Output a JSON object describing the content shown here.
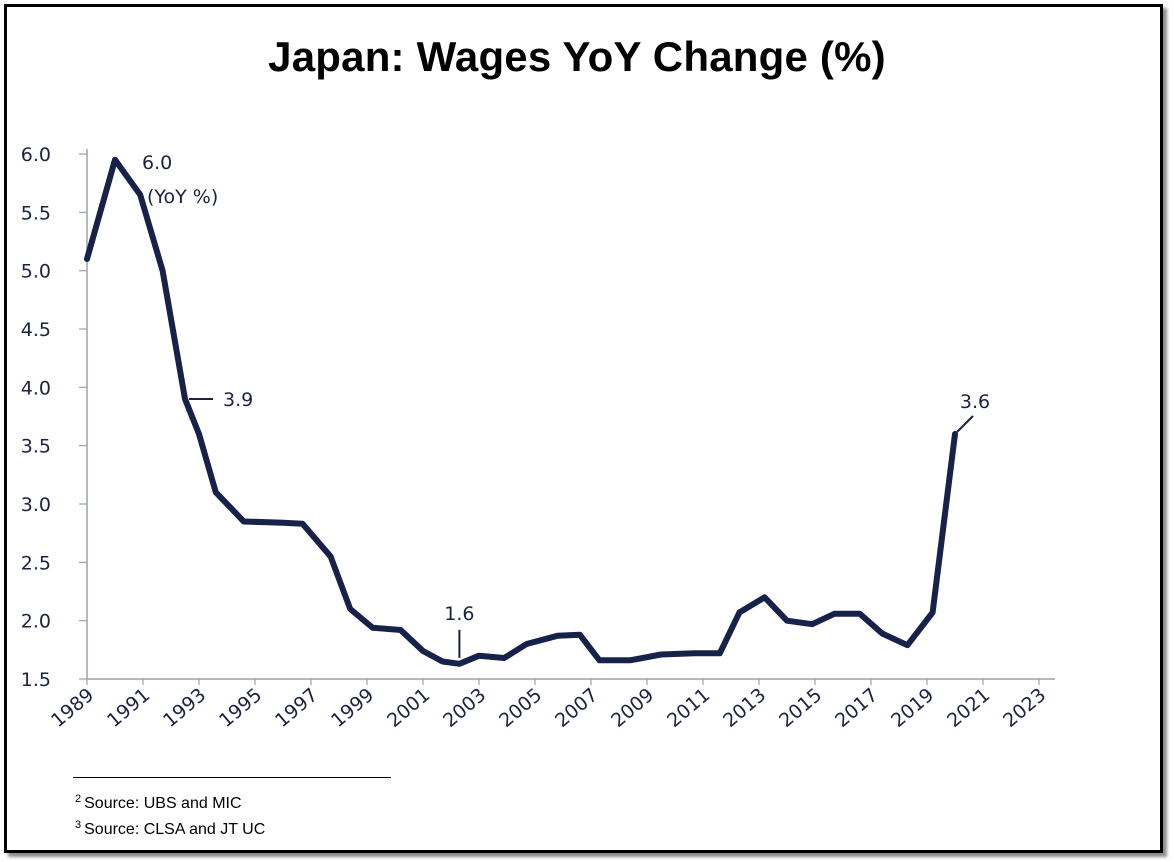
{
  "chart_data": {
    "type": "line",
    "title": "Japan: Wages YoY Change (%)",
    "xlabel": "",
    "ylabel": "",
    "unit_note": "(YoY %)",
    "ylim": [
      1.5,
      6.0
    ],
    "xlim": [
      1989,
      2023
    ],
    "yticks": [
      "1.5",
      "2.0",
      "2.5",
      "3.0",
      "3.5",
      "4.0",
      "4.5",
      "5.0",
      "5.5",
      "6.0"
    ],
    "xticks": [
      "1989",
      "1991",
      "1993",
      "1995",
      "1997",
      "1999",
      "2001",
      "2003",
      "2005",
      "2007",
      "2009",
      "2011",
      "2013",
      "2015",
      "2017",
      "2019",
      "2021",
      "2023"
    ],
    "color": "#17224a",
    "series": [
      {
        "name": "Wages YoY %",
        "points": [
          [
            1989.0,
            5.1
          ],
          [
            1990.0,
            5.95
          ],
          [
            1990.9,
            5.65
          ],
          [
            1991.7,
            5.0
          ],
          [
            1992.5,
            3.9
          ],
          [
            1993.0,
            3.6
          ],
          [
            1993.6,
            3.1
          ],
          [
            1994.6,
            2.85
          ],
          [
            1996.0,
            2.84
          ],
          [
            1996.7,
            2.83
          ],
          [
            1997.7,
            2.55
          ],
          [
            1998.4,
            2.1
          ],
          [
            1999.2,
            1.94
          ],
          [
            2000.2,
            1.92
          ],
          [
            2001.0,
            1.74
          ],
          [
            2001.7,
            1.65
          ],
          [
            2002.3,
            1.63
          ],
          [
            2003.0,
            1.7
          ],
          [
            2003.9,
            1.68
          ],
          [
            2004.7,
            1.8
          ],
          [
            2005.8,
            1.87
          ],
          [
            2006.6,
            1.88
          ],
          [
            2007.3,
            1.66
          ],
          [
            2008.4,
            1.66
          ],
          [
            2009.5,
            1.71
          ],
          [
            2010.7,
            1.72
          ],
          [
            2011.6,
            1.72
          ],
          [
            2012.3,
            2.07
          ],
          [
            2013.2,
            2.2
          ],
          [
            2014.0,
            2.0
          ],
          [
            2014.9,
            1.97
          ],
          [
            2015.7,
            2.06
          ],
          [
            2016.6,
            2.06
          ],
          [
            2017.4,
            1.89
          ],
          [
            2018.3,
            1.79
          ],
          [
            2019.2,
            2.07
          ],
          [
            2020.0,
            3.6
          ]
        ]
      }
    ],
    "annotations": [
      {
        "text": "6.0",
        "x": 1990.0,
        "y": 5.95
      },
      {
        "text": "3.9",
        "x": 1992.5,
        "y": 3.9
      },
      {
        "text": "1.6",
        "x": 2002.3,
        "y": 1.63
      },
      {
        "text": "3.6",
        "x": 2020.0,
        "y": 3.6
      }
    ]
  },
  "footnotes": [
    {
      "num": "2",
      "text": "Source: UBS and MIC"
    },
    {
      "num": "3",
      "text": "Source: CLSA and JT UC"
    }
  ]
}
